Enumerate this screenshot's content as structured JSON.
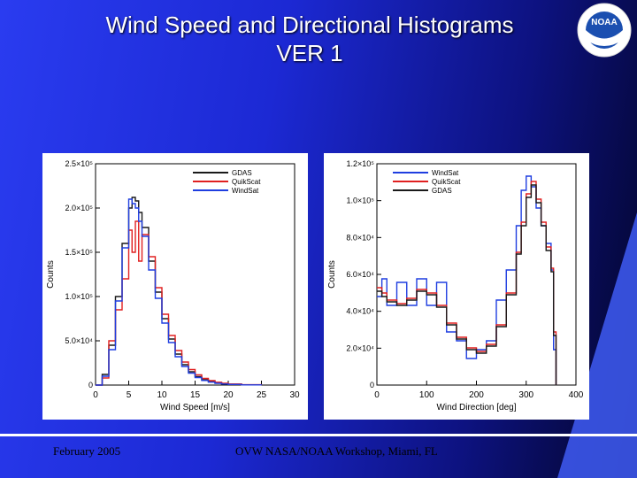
{
  "slide": {
    "title_line1": "Wind Speed and Directional Histograms",
    "title_line2": "VER 1",
    "footer_date": "February 2005",
    "footer_venue": "OVW NASA/NOAA Workshop, Miami, FL",
    "logo_text": "NOAA"
  },
  "colors": {
    "GDAS": "#1a1a1a",
    "QuikScat": "#e02020",
    "WindSat": "#1f3ee0"
  },
  "chart_data": [
    {
      "type": "line",
      "xlabel": "Wind Speed [m/s]",
      "ylabel": "Counts",
      "xlim": [
        0,
        30
      ],
      "ylim": [
        0,
        250000
      ],
      "x_ticks": [
        "0",
        "5",
        "10",
        "15",
        "20",
        "25",
        "30"
      ],
      "y_ticks": [
        "0",
        "5.0×10⁴",
        "1.0×10⁵",
        "1.5×10⁵",
        "2.0×10⁵",
        "2.5×10⁵"
      ],
      "legend": [
        "GDAS",
        "QuikScat",
        "WindSat"
      ],
      "legend_position": "top-right",
      "x": [
        0,
        1,
        2,
        3,
        4,
        5,
        5.5,
        6,
        6.5,
        7,
        8,
        9,
        10,
        11,
        12,
        13,
        14,
        15,
        16,
        17,
        18,
        19,
        20,
        22,
        25
      ],
      "series": [
        {
          "name": "GDAS",
          "values": [
            0,
            12000,
            45000,
            100000,
            160000,
            200000,
            212000,
            208000,
            195000,
            178000,
            140000,
            105000,
            75000,
            52000,
            35000,
            23000,
            15000,
            9500,
            6000,
            4000,
            2500,
            1500,
            900,
            300,
            0
          ]
        },
        {
          "name": "QuikScat",
          "values": [
            0,
            8000,
            50000,
            85000,
            120000,
            175000,
            150000,
            185000,
            140000,
            170000,
            145000,
            110000,
            80000,
            56000,
            39000,
            26000,
            17500,
            11500,
            7500,
            5000,
            3200,
            2000,
            1200,
            400,
            0
          ]
        },
        {
          "name": "WindSat",
          "values": [
            0,
            10000,
            40000,
            95000,
            155000,
            210000,
            205000,
            200000,
            185000,
            168000,
            130000,
            98000,
            70000,
            48000,
            32000,
            21000,
            13500,
            8500,
            5200,
            3300,
            2000,
            1200,
            700,
            200,
            0
          ]
        }
      ]
    },
    {
      "type": "line",
      "xlabel": "Wind Direction [deg]",
      "ylabel": "Counts",
      "xlim": [
        0,
        400
      ],
      "ylim": [
        0,
        125000
      ],
      "x_ticks": [
        "0",
        "100",
        "200",
        "300",
        "400"
      ],
      "y_ticks": [
        "0",
        "2.0×10⁴",
        "4.0×10⁴",
        "6.0×10⁴",
        "8.0×10⁴",
        "1.0×10⁵",
        "1.2×10⁵"
      ],
      "legend": [
        "WindSat",
        "QuikScat",
        "GDAS"
      ],
      "legend_position": "top-left",
      "x": [
        0,
        10,
        20,
        40,
        60,
        80,
        100,
        120,
        140,
        160,
        180,
        200,
        220,
        240,
        260,
        280,
        290,
        300,
        310,
        320,
        330,
        340,
        350,
        355,
        360
      ],
      "series": [
        {
          "name": "WindSat",
          "values": [
            50000,
            60000,
            45000,
            58000,
            45000,
            60000,
            45000,
            58000,
            30000,
            25000,
            15000,
            20000,
            25000,
            48000,
            65000,
            90000,
            110000,
            118000,
            112000,
            100000,
            90000,
            80000,
            65000,
            20000,
            0
          ]
        },
        {
          "name": "QuikScat",
          "values": [
            55000,
            52000,
            48000,
            46000,
            49000,
            54000,
            52000,
            45000,
            35000,
            27000,
            21000,
            19000,
            23000,
            34000,
            52000,
            75000,
            92000,
            108000,
            115000,
            105000,
            92000,
            78000,
            66000,
            30000,
            0
          ]
        },
        {
          "name": "GDAS",
          "values": [
            53000,
            50000,
            47000,
            45000,
            48000,
            53000,
            51000,
            44000,
            34000,
            26000,
            20000,
            18000,
            22000,
            33000,
            51000,
            74000,
            90000,
            106000,
            113000,
            103000,
            90000,
            76000,
            64000,
            28000,
            0
          ]
        }
      ]
    }
  ]
}
